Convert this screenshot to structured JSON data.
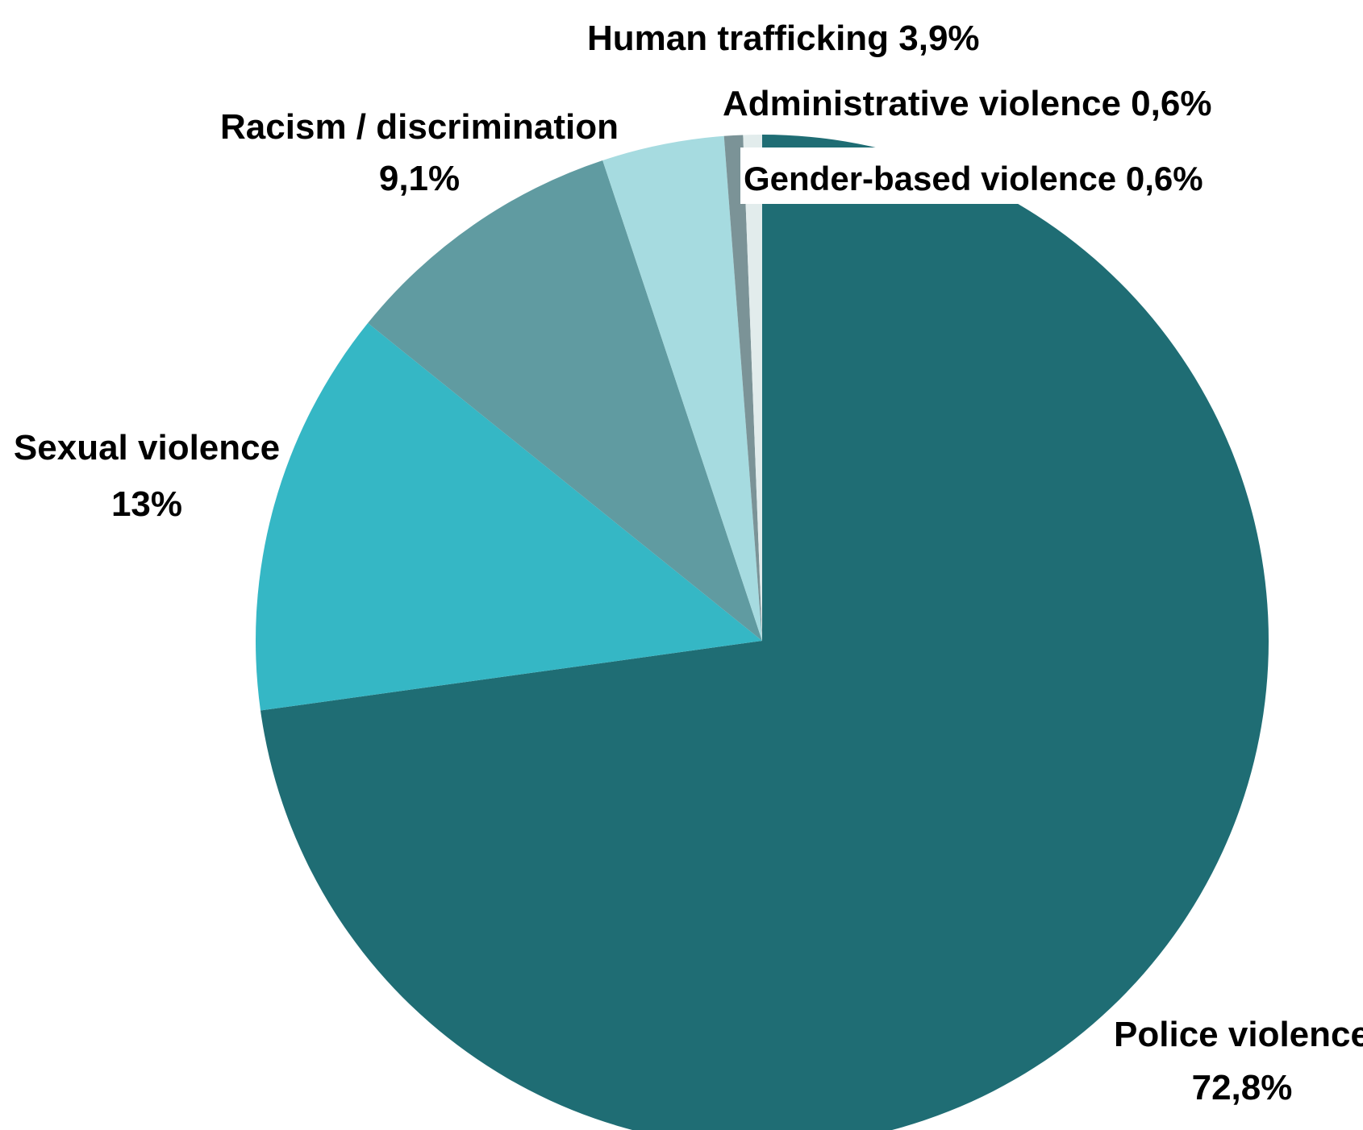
{
  "chart_data": {
    "type": "pie",
    "slices": [
      {
        "name": "Police violence",
        "label": "Police violence",
        "value_label": "72,8%",
        "value": 72.8,
        "color": "#1f6d74"
      },
      {
        "name": "Sexual violence",
        "label": "Sexual violence",
        "value_label": "13%",
        "value": 13.0,
        "color": "#35b7c5"
      },
      {
        "name": "Racism / discrimination",
        "label": "Racism / discrimination",
        "value_label": "9,1%",
        "value": 9.1,
        "color": "#609ba1"
      },
      {
        "name": "Human trafficking",
        "label": "Human trafficking 3,9%",
        "value_label": "",
        "value": 3.9,
        "color": "#a6dbe0"
      },
      {
        "name": "Administrative violence",
        "label": "Administrative violence 0,6%",
        "value_label": "",
        "value": 0.6,
        "color": "#7b9397"
      },
      {
        "name": "Gender-based violence",
        "label": "Gender-based violence 0,6%",
        "value_label": "",
        "value": 0.6,
        "color": "#e2ecec"
      }
    ]
  }
}
